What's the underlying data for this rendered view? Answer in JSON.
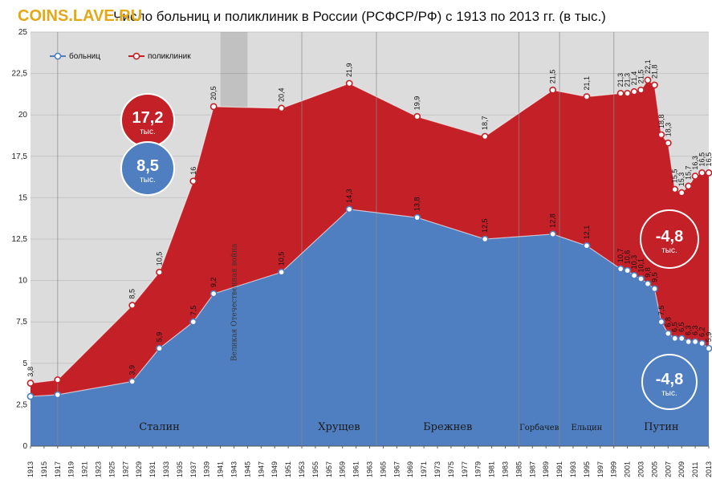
{
  "watermark": "COINS.LAVE.RU",
  "chart_data": {
    "type": "area",
    "title": "Число больниц и поликлиник в России (РСФСР/РФ) с 1913 по 2013 гг. (в тыс.)",
    "ylim": [
      0,
      25
    ],
    "yticks": [
      "0",
      "2,5",
      "5",
      "7,5",
      "10",
      "12,5",
      "15",
      "17,5",
      "20",
      "22,5",
      "25"
    ],
    "xlim": [
      1913,
      2013
    ],
    "xticks": [
      "1913",
      "1915",
      "1917",
      "1919",
      "1921",
      "1923",
      "1925",
      "1927",
      "1929",
      "1931",
      "1933",
      "1935",
      "1937",
      "1939",
      "1941",
      "1943",
      "1945",
      "1947",
      "1949",
      "1951",
      "1953",
      "1955",
      "1957",
      "1959",
      "1961",
      "1963",
      "1965",
      "1967",
      "1969",
      "1971",
      "1973",
      "1975",
      "1977",
      "1979",
      "1981",
      "1983",
      "1985",
      "1987",
      "1989",
      "1991",
      "1993",
      "1995",
      "1997",
      "1999",
      "2001",
      "2003",
      "2005",
      "2007",
      "2009",
      "2011",
      "2013"
    ],
    "legend": {
      "position": "top-left"
    },
    "series": [
      {
        "name": "больниц",
        "color": "#4f7fc0",
        "points": [
          {
            "x": 1913,
            "y": 3.0,
            "label": ""
          },
          {
            "x": 1917,
            "y": 3.1,
            "label": ""
          },
          {
            "x": 1928,
            "y": 3.9,
            "label": "3,9"
          },
          {
            "x": 1932,
            "y": 5.9,
            "label": "5,9"
          },
          {
            "x": 1937,
            "y": 7.5,
            "label": "7,5"
          },
          {
            "x": 1940,
            "y": 9.2,
            "label": "9,2"
          },
          {
            "x": 1950,
            "y": 10.5,
            "label": "10,5"
          },
          {
            "x": 1960,
            "y": 14.3,
            "label": "14,3"
          },
          {
            "x": 1970,
            "y": 13.8,
            "label": "13,8"
          },
          {
            "x": 1980,
            "y": 12.5,
            "label": "12,5"
          },
          {
            "x": 1990,
            "y": 12.8,
            "label": "12,8"
          },
          {
            "x": 1995,
            "y": 12.1,
            "label": "12,1"
          },
          {
            "x": 2000,
            "y": 10.7,
            "label": "10,7"
          },
          {
            "x": 2001,
            "y": 10.6,
            "label": "10,6"
          },
          {
            "x": 2002,
            "y": 10.3,
            "label": "10,3"
          },
          {
            "x": 2003,
            "y": 10.1,
            "label": "10,1"
          },
          {
            "x": 2004,
            "y": 9.8,
            "label": "9,8"
          },
          {
            "x": 2005,
            "y": 9.5,
            "label": "9,5"
          },
          {
            "x": 2006,
            "y": 7.5,
            "label": "7,5"
          },
          {
            "x": 2007,
            "y": 6.8,
            "label": "6,8"
          },
          {
            "x": 2008,
            "y": 6.5,
            "label": "6,5"
          },
          {
            "x": 2009,
            "y": 6.5,
            "label": "6,5"
          },
          {
            "x": 2010,
            "y": 6.3,
            "label": "6,3"
          },
          {
            "x": 2011,
            "y": 6.3,
            "label": "6,3"
          },
          {
            "x": 2012,
            "y": 6.2,
            "label": "6,2"
          },
          {
            "x": 2013,
            "y": 5.9,
            "label": "5,9"
          }
        ]
      },
      {
        "name": "поликлиник",
        "color": "#c42027",
        "points": [
          {
            "x": 1913,
            "y": 3.8,
            "label": "3,8"
          },
          {
            "x": 1917,
            "y": 4.0,
            "label": ""
          },
          {
            "x": 1928,
            "y": 8.5,
            "label": "8,5"
          },
          {
            "x": 1932,
            "y": 10.5,
            "label": "10,5"
          },
          {
            "x": 1937,
            "y": 16.0,
            "label": "16"
          },
          {
            "x": 1940,
            "y": 20.5,
            "label": "20,5"
          },
          {
            "x": 1950,
            "y": 20.4,
            "label": "20,4"
          },
          {
            "x": 1960,
            "y": 21.9,
            "label": "21,9"
          },
          {
            "x": 1970,
            "y": 19.9,
            "label": "19,9"
          },
          {
            "x": 1980,
            "y": 18.7,
            "label": "18,7"
          },
          {
            "x": 1990,
            "y": 21.5,
            "label": "21,5"
          },
          {
            "x": 1995,
            "y": 21.1,
            "label": "21,1"
          },
          {
            "x": 2000,
            "y": 21.3,
            "label": "21,3"
          },
          {
            "x": 2001,
            "y": 21.3,
            "label": "21,3"
          },
          {
            "x": 2002,
            "y": 21.4,
            "label": "21,4"
          },
          {
            "x": 2003,
            "y": 21.5,
            "label": "21,5"
          },
          {
            "x": 2004,
            "y": 22.1,
            "label": "22,1"
          },
          {
            "x": 2005,
            "y": 21.8,
            "label": "21,8"
          },
          {
            "x": 2006,
            "y": 18.8,
            "label": "18,8"
          },
          {
            "x": 2007,
            "y": 18.3,
            "label": "18,3"
          },
          {
            "x": 2008,
            "y": 15.5,
            "label": "15,5"
          },
          {
            "x": 2009,
            "y": 15.3,
            "label": "15,3"
          },
          {
            "x": 2010,
            "y": 15.7,
            "label": "15,7"
          },
          {
            "x": 2011,
            "y": 16.3,
            "label": "16,3"
          },
          {
            "x": 2012,
            "y": 16.5,
            "label": "16,5"
          },
          {
            "x": 2013,
            "y": 16.5,
            "label": "16,5"
          }
        ]
      }
    ],
    "eras": [
      {
        "name": "Сталин",
        "from": 1917,
        "to": 1953,
        "label_x": 1932
      },
      {
        "name": "Хрущев",
        "from": 1953,
        "to": 1964,
        "label_x": 1958.5
      },
      {
        "name": "Брежнев",
        "from": 1964,
        "to": 1985,
        "label_x": 1974.5
      },
      {
        "name": "Горбачев",
        "from": 1985,
        "to": 1991,
        "label_x": 1988
      },
      {
        "name": "Ельцин",
        "from": 1991,
        "to": 1999,
        "label_x": 1995
      },
      {
        "name": "Путин",
        "from": 1999,
        "to": 2013,
        "label_x": 2006
      }
    ],
    "war_band": {
      "from": 1941,
      "to": 1945,
      "label": "Великая Отечественная война"
    },
    "annotations": [
      {
        "value": "17,2",
        "unit": "тыс.",
        "color": "#c42027"
      },
      {
        "value": "8,5",
        "unit": "тыс.",
        "color": "#4f7fc0"
      },
      {
        "value": "-4,8",
        "unit": "тыс.",
        "color": "#c42027"
      },
      {
        "value": "-4,8",
        "unit": "тыс.",
        "color": "#4f7fc0"
      }
    ]
  }
}
